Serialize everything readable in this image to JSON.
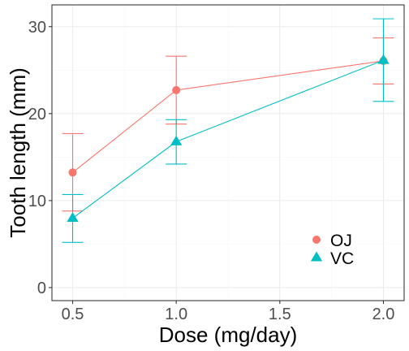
{
  "chart_data": {
    "type": "line",
    "xlabel": "Dose (mg/day)",
    "ylabel": "Tooth length (mm)",
    "x_ticks": [
      0.5,
      1.0,
      1.5,
      2.0
    ],
    "x_tick_labels": [
      "0.5",
      "1.0",
      "1.5",
      "2.0"
    ],
    "y_ticks": [
      0,
      10,
      20,
      30
    ],
    "y_tick_labels": [
      "0",
      "10",
      "20",
      "30"
    ],
    "xlim": [
      0.4,
      2.1
    ],
    "ylim": [
      -1.5,
      32.5
    ],
    "grid": true,
    "legend_position": "bottom-right",
    "series": [
      {
        "name": "OJ",
        "color": "#F8766D",
        "marker": "circle",
        "x": [
          0.5,
          1.0,
          2.0
        ],
        "y": [
          13.23,
          22.7,
          26.06
        ],
        "err_low": [
          8.8,
          18.8,
          23.4
        ],
        "err_high": [
          17.7,
          26.6,
          28.7
        ]
      },
      {
        "name": "VC",
        "color": "#00BFC4",
        "marker": "triangle",
        "x": [
          0.5,
          1.0,
          2.0
        ],
        "y": [
          7.98,
          16.77,
          26.14
        ],
        "err_low": [
          5.2,
          14.2,
          21.4
        ],
        "err_high": [
          10.7,
          19.3,
          30.9
        ]
      }
    ]
  }
}
